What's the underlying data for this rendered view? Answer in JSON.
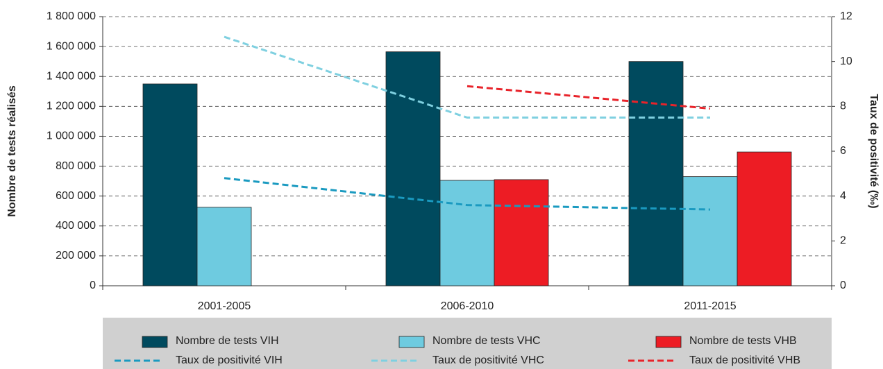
{
  "chart_data": {
    "type": "bar",
    "categories": [
      "2001-2005",
      "2006-2010",
      "2011-2015"
    ],
    "y_label": "Nombre de tests réalisés",
    "y2_label": "Taux de positivité (‰)",
    "ylim": [
      0,
      1800000
    ],
    "yticks": [
      0,
      {
        "value": 200000,
        "label": "200 000"
      },
      {
        "value": 400000,
        "label": "400 000"
      },
      {
        "value": 600000,
        "label": "600 000"
      },
      {
        "value": 800000,
        "label": "800 000"
      },
      {
        "value": 1000000,
        "label": "1 000 000"
      },
      {
        "value": 1200000,
        "label": "1 200 000"
      },
      {
        "value": 1400000,
        "label": "1 400 000"
      },
      {
        "value": 1600000,
        "label": "1 600 000"
      },
      {
        "value": 1800000,
        "label": "1 800 000"
      }
    ],
    "y2lim": [
      0,
      12
    ],
    "y2ticks": [
      0,
      2,
      4,
      6,
      8,
      10,
      12
    ],
    "grid": true,
    "legend": "bottom",
    "series": [
      {
        "name": "Nombre de tests VIH",
        "type": "bar",
        "color": "#004a5e",
        "values": [
          1350000,
          1565000,
          1500000
        ]
      },
      {
        "name": "Nombre de tests VHC",
        "type": "bar",
        "color": "#6ecbe0",
        "values": [
          525000,
          705000,
          730000
        ]
      },
      {
        "name": "Nombre de tests VHB",
        "type": "bar",
        "color": "#ed1c24",
        "values": [
          null,
          710000,
          895000
        ]
      },
      {
        "name": "Taux de positivité VIH",
        "type": "line",
        "axis": "y2",
        "color": "#1a9ac0",
        "values": [
          4.8,
          3.6,
          3.4
        ]
      },
      {
        "name": "Taux de positivité VHC",
        "type": "line",
        "axis": "y2",
        "color": "#7fd0e0",
        "values": [
          11.1,
          7.5,
          7.5
        ]
      },
      {
        "name": "Taux de positivité VHB",
        "type": "line",
        "axis": "y2",
        "color": "#e8232a",
        "values": [
          null,
          8.9,
          7.9
        ]
      }
    ]
  }
}
